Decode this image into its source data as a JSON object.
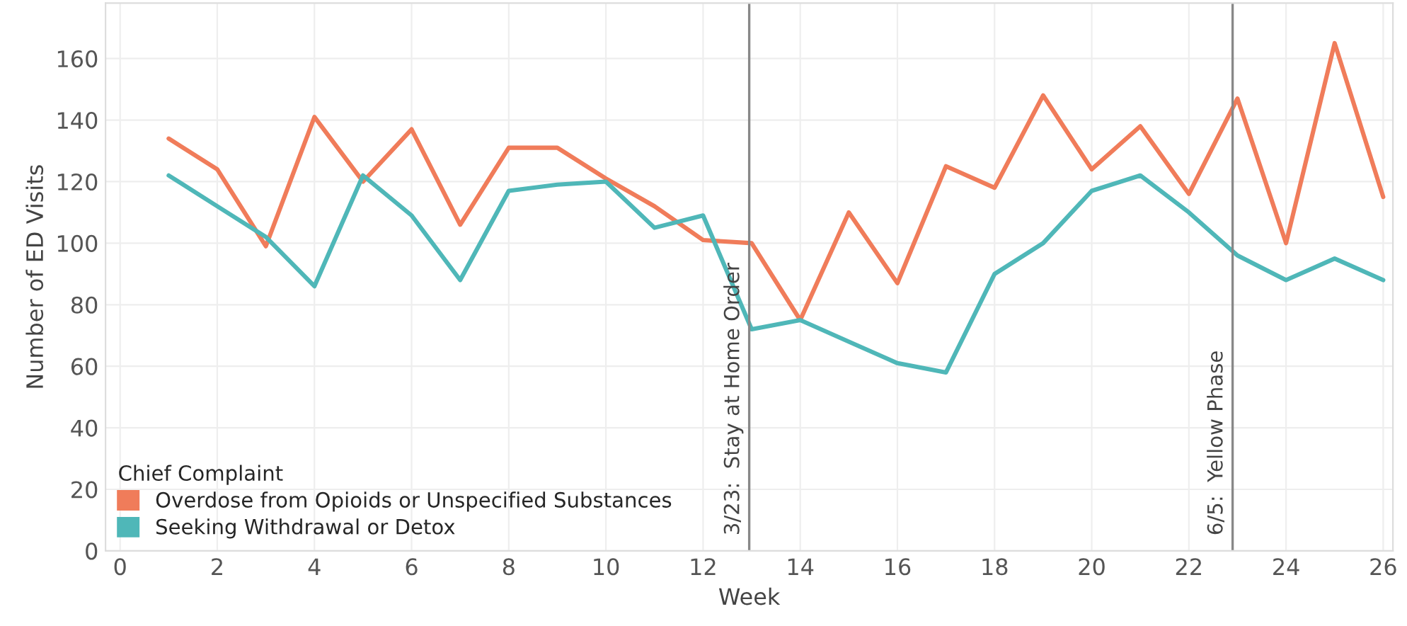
{
  "chart_data": {
    "type": "line",
    "xlabel": "Week",
    "ylabel": "Number of ED Visits",
    "legend_title": "Chief Complaint",
    "x": [
      1,
      2,
      3,
      4,
      5,
      6,
      7,
      8,
      9,
      10,
      11,
      12,
      13,
      14,
      15,
      16,
      17,
      18,
      19,
      20,
      21,
      22,
      23,
      24,
      25,
      26
    ],
    "series": [
      {
        "name": "Overdose from Opioids or Unspecified Substances",
        "color": "#f07c5a",
        "values": [
          134,
          124,
          99,
          141,
          120,
          137,
          106,
          131,
          131,
          121,
          112,
          101,
          100,
          75,
          110,
          87,
          125,
          118,
          148,
          124,
          138,
          116,
          147,
          100,
          165,
          115
        ]
      },
      {
        "name": "Seeking Withdrawal or Detox",
        "color": "#4fb7b8",
        "values": [
          122,
          112,
          102,
          86,
          122,
          109,
          88,
          117,
          119,
          120,
          105,
          109,
          72,
          75,
          68,
          61,
          58,
          90,
          100,
          117,
          122,
          110,
          96,
          88,
          95,
          88
        ]
      }
    ],
    "xlim": [
      -0.3,
      26.2
    ],
    "ylim": [
      0,
      178
    ],
    "xticks": [
      0,
      2,
      4,
      6,
      8,
      10,
      12,
      14,
      16,
      18,
      20,
      22,
      24,
      26
    ],
    "yticks": [
      0,
      20,
      40,
      60,
      80,
      100,
      120,
      140,
      160
    ],
    "ref_lines": [
      {
        "axis": "x",
        "value": 12.95,
        "label": "3/23:  Stay at Home Order",
        "color": "#888888"
      },
      {
        "axis": "x",
        "value": 22.9,
        "label": "6/5:  Yellow Phase",
        "color": "#888888"
      }
    ],
    "grid": true,
    "legend": "bottom left",
    "marker": "none",
    "line_style": "solid"
  }
}
